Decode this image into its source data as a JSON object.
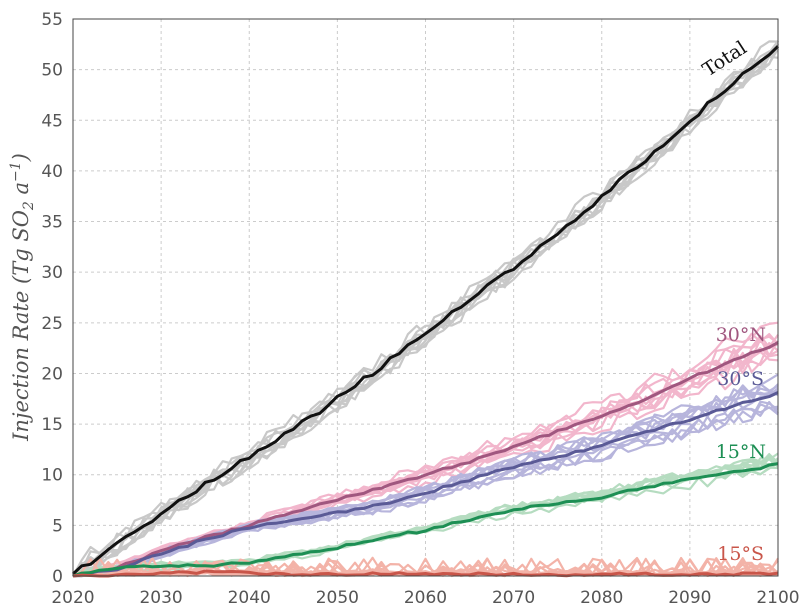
{
  "chart_data": {
    "type": "line",
    "title": "",
    "xlabel": "",
    "ylabel": "Injection Rate (Tg SO2 a−1)",
    "ylabel_parts": [
      "Injection Rate (Tg SO",
      "2",
      " a",
      "−1",
      ")"
    ],
    "xlim": [
      2020,
      2100
    ],
    "ylim": [
      0,
      55
    ],
    "x_ticks": [
      "2020",
      "2030",
      "2040",
      "2050",
      "2060",
      "2070",
      "2080",
      "2090",
      "2100"
    ],
    "y_ticks": [
      "0",
      "5",
      "10",
      "15",
      "20",
      "25",
      "30",
      "35",
      "40",
      "45",
      "50",
      "55"
    ],
    "grid": true,
    "ensemble_members": 10,
    "series": [
      {
        "name": "Total",
        "color": "#111111",
        "ensemble_color": "#c8c8c8",
        "x": [
          2020,
          2025,
          2030,
          2035,
          2040,
          2045,
          2050,
          2055,
          2060,
          2065,
          2070,
          2075,
          2080,
          2085,
          2090,
          2095,
          2100
        ],
        "values": [
          0.2,
          3.2,
          6.2,
          9.1,
          11.7,
          14.5,
          17.5,
          20.7,
          23.9,
          27.2,
          30.5,
          33.8,
          37.5,
          41.1,
          45.0,
          48.8,
          52.4
        ]
      },
      {
        "name": "30°N",
        "color": "#a0577f",
        "ensemble_color": "#f2b6cc",
        "x": [
          2020,
          2025,
          2030,
          2035,
          2040,
          2045,
          2050,
          2055,
          2060,
          2065,
          2070,
          2075,
          2080,
          2085,
          2090,
          2095,
          2100
        ],
        "values": [
          0.0,
          0.8,
          2.5,
          3.8,
          5.0,
          6.3,
          7.5,
          8.7,
          10.0,
          11.3,
          12.8,
          14.3,
          15.8,
          17.5,
          19.5,
          21.3,
          23.0
        ]
      },
      {
        "name": "30°S",
        "color": "#5a5a96",
        "ensemble_color": "#b7b5dc",
        "x": [
          2020,
          2025,
          2030,
          2035,
          2040,
          2045,
          2050,
          2055,
          2060,
          2065,
          2070,
          2075,
          2080,
          2085,
          2090,
          2095,
          2100
        ],
        "values": [
          0.0,
          0.7,
          2.2,
          3.6,
          4.8,
          5.6,
          6.3,
          7.0,
          8.2,
          9.5,
          10.8,
          11.8,
          12.9,
          14.2,
          15.5,
          16.8,
          18.0
        ]
      },
      {
        "name": "15°N",
        "color": "#1d8f54",
        "ensemble_color": "#b5dcc0",
        "x": [
          2020,
          2025,
          2030,
          2035,
          2040,
          2045,
          2050,
          2055,
          2060,
          2065,
          2070,
          2075,
          2080,
          2085,
          2090,
          2095,
          2100
        ],
        "values": [
          0.0,
          0.8,
          1.0,
          1.0,
          1.3,
          2.0,
          2.8,
          3.8,
          4.5,
          5.6,
          6.5,
          7.2,
          7.8,
          8.8,
          9.5,
          10.3,
          11.0
        ]
      },
      {
        "name": "15°S",
        "color": "#c9564a",
        "ensemble_color": "#f3b3a8",
        "x": [
          2020,
          2025,
          2030,
          2035,
          2040,
          2045,
          2050,
          2055,
          2060,
          2065,
          2070,
          2075,
          2080,
          2085,
          2090,
          2095,
          2100
        ],
        "values": [
          0.0,
          0.1,
          0.3,
          0.4,
          0.3,
          0.2,
          0.2,
          0.2,
          0.2,
          0.2,
          0.2,
          0.1,
          0.2,
          0.2,
          0.1,
          0.2,
          0.2
        ]
      }
    ]
  }
}
